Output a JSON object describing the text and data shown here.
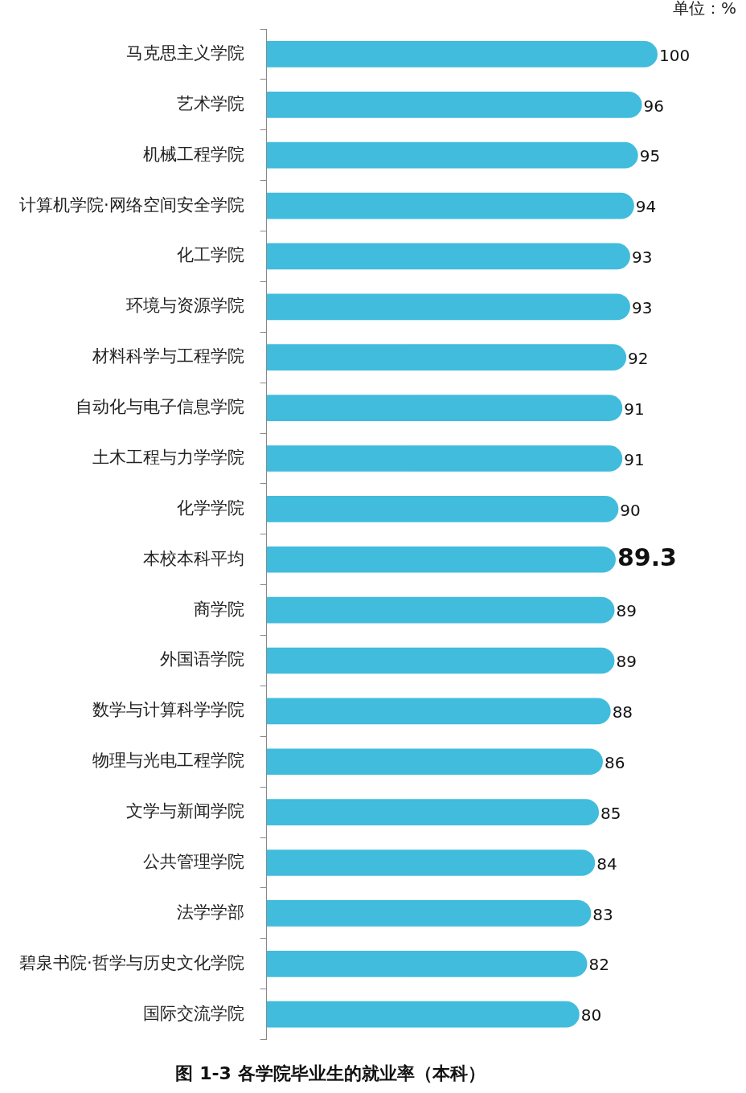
{
  "chart_data": {
    "type": "bar",
    "orientation": "horizontal",
    "title": "图 1-3 各学院毕业生的就业率（本科）",
    "annotations": [
      "单位：%"
    ],
    "categories": [
      "马克思主义学院",
      "艺术学院",
      "机械工程学院",
      "计算机学院·网络空间安全学院",
      "化工学院",
      "环境与资源学院",
      "材料科学与工程学院",
      "自动化与电子信息学院",
      "土木工程与力学学院",
      "化学学院",
      "本校本科平均",
      "商学院",
      "外国语学院",
      "数学与计算科学学院",
      "物理与光电工程学院",
      "文学与新闻学院",
      "公共管理学院",
      "法学学部",
      "碧泉书院·哲学与历史文化学院",
      "国际交流学院"
    ],
    "values": [
      100,
      96,
      95,
      94,
      93,
      93,
      92,
      91,
      91,
      90,
      89.3,
      89,
      89,
      88,
      86,
      85,
      84,
      83,
      82,
      80
    ],
    "color": "#41bcdc",
    "data_labels": true,
    "tick_labels": "y"
  }
}
